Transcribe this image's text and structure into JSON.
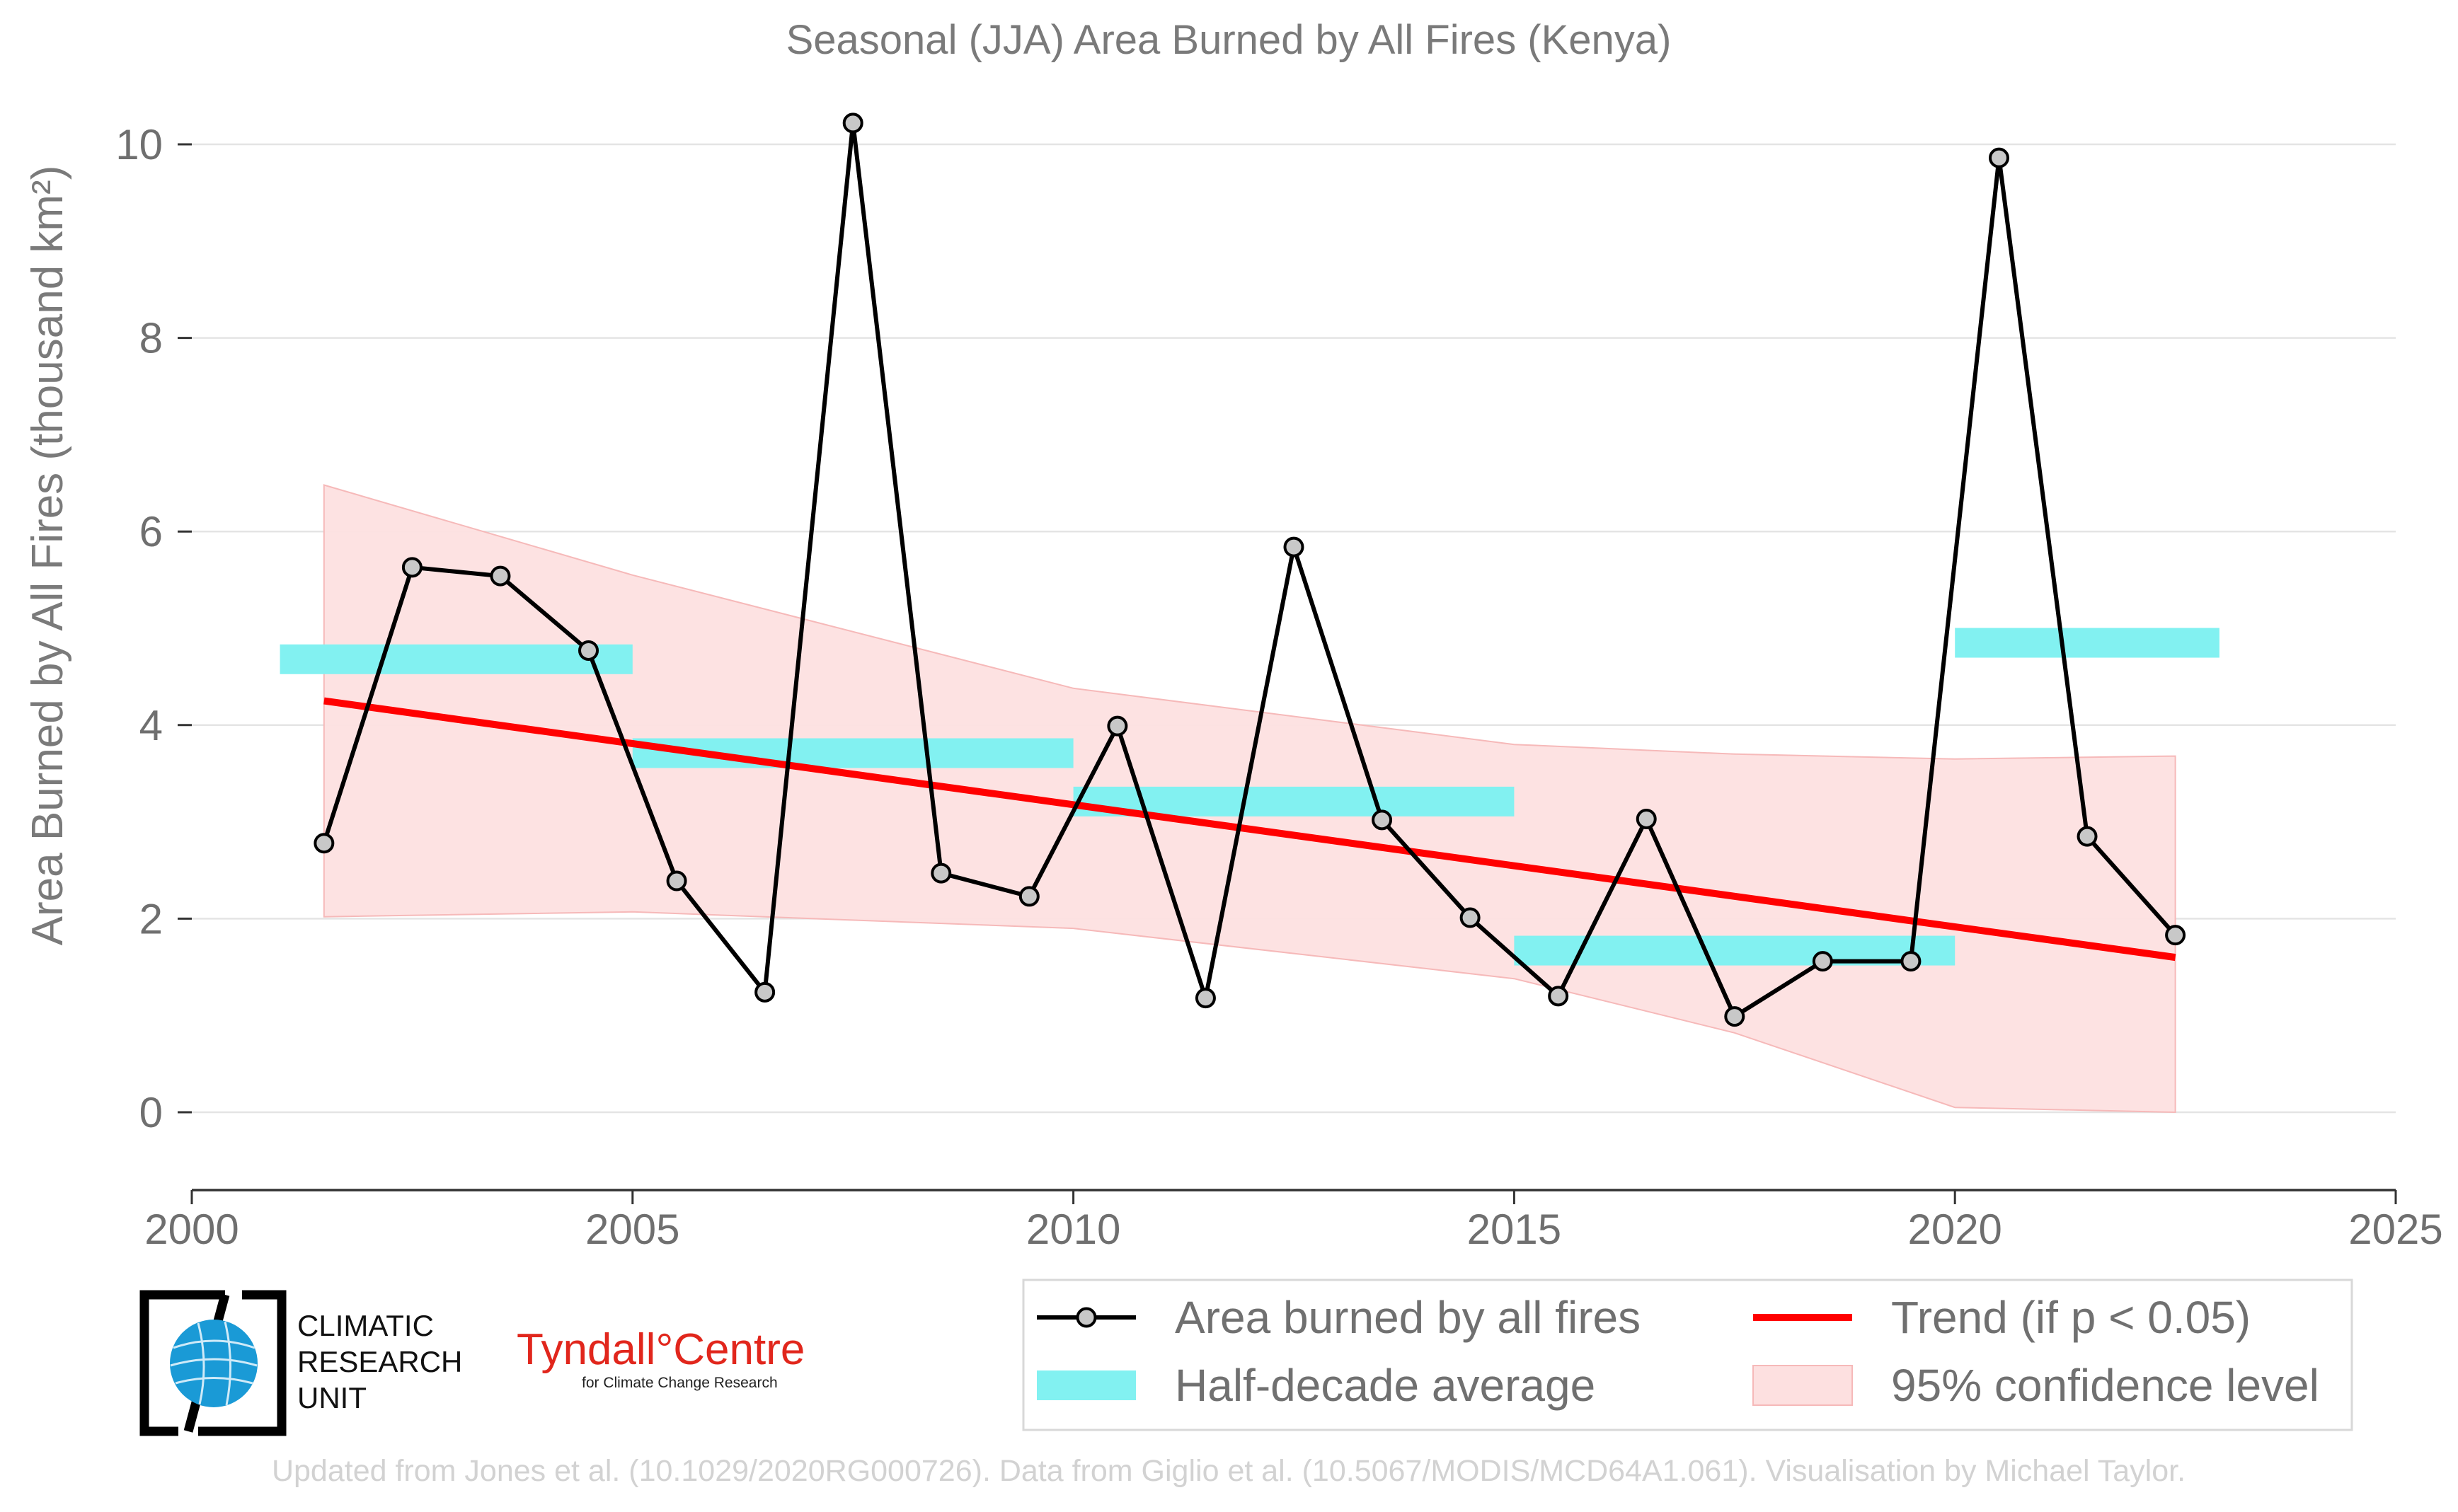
{
  "chart_data": {
    "type": "line",
    "title": "Seasonal (JJA) Area Burned by All Fires (Kenya)",
    "ylabel": "Area Burned by All Fires (thousand km²)",
    "xlabel": "",
    "xlim": [
      2000,
      2025
    ],
    "ylim": [
      0,
      10.5
    ],
    "x_ticks": [
      2000,
      2005,
      2010,
      2015,
      2020,
      2025
    ],
    "y_ticks": [
      0,
      2,
      4,
      6,
      8,
      10
    ],
    "grid": "horizontal",
    "legend_position": "bottom-right",
    "series": [
      {
        "name": "Area burned by all fires",
        "type": "line-markers",
        "color": "#000000",
        "marker_color": "#c8c8c8",
        "x": [
          2001.5,
          2002.5,
          2003.5,
          2004.5,
          2005.5,
          2006.5,
          2007.5,
          2008.5,
          2009.5,
          2010.5,
          2011.5,
          2012.5,
          2013.5,
          2014.5,
          2015.5,
          2016.5,
          2017.5,
          2018.5,
          2019.5,
          2020.5,
          2021.5,
          2022.5
        ],
        "y": [
          2.78,
          5.63,
          5.54,
          4.77,
          2.39,
          1.24,
          10.22,
          2.47,
          2.23,
          3.99,
          1.18,
          5.84,
          3.02,
          2.01,
          1.2,
          3.03,
          0.99,
          1.56,
          1.56,
          9.86,
          2.85,
          1.83
        ]
      },
      {
        "name": "Half-decade average",
        "type": "segments",
        "color": "#82f1f1",
        "segments": [
          {
            "x0": 2001.0,
            "x1": 2005.0,
            "y": 4.68
          },
          {
            "x0": 2005.0,
            "x1": 2010.0,
            "y": 3.71
          },
          {
            "x0": 2010.0,
            "x1": 2015.0,
            "y": 3.21
          },
          {
            "x0": 2015.0,
            "x1": 2020.0,
            "y": 1.67
          },
          {
            "x0": 2020.0,
            "x1": 2023.0,
            "y": 4.85
          }
        ]
      },
      {
        "name": "Trend (if p < 0.05)",
        "type": "line",
        "color": "#ff0000",
        "x": [
          2001.5,
          2022.5
        ],
        "y": [
          4.25,
          1.6
        ]
      },
      {
        "name": "95% confidence level",
        "type": "band",
        "color": "#fde0e0",
        "x": [
          2001.5,
          2005,
          2010,
          2015,
          2017.5,
          2020,
          2022.5
        ],
        "upper": [
          6.48,
          5.55,
          4.38,
          3.8,
          3.7,
          3.65,
          3.68
        ],
        "lower": [
          2.02,
          2.07,
          1.9,
          1.38,
          0.82,
          0.05,
          0.0
        ]
      }
    ]
  },
  "legend": {
    "items": [
      {
        "label": "Area burned by all fires",
        "kind": "line-marker",
        "color": "#000000"
      },
      {
        "label": "Trend (if p < 0.05)",
        "kind": "line",
        "color": "#ff0000"
      },
      {
        "label": "Half-decade average",
        "kind": "bar",
        "color": "#82f1f1"
      },
      {
        "label": "95% confidence level",
        "kind": "band",
        "color": "#fde0e0"
      }
    ]
  },
  "logos": {
    "cru_lines": [
      "CLIMATIC",
      "RESEARCH",
      "UNIT"
    ],
    "tyndall_name": "Tyndall°Centre",
    "tyndall_sub": "for Climate Change Research"
  },
  "footer": "Updated from Jones et al. (10.1029/2020RG000726). Data from Giglio et al. (10.5067/MODIS/MCD64A1.061). Visualisation by Michael Taylor."
}
